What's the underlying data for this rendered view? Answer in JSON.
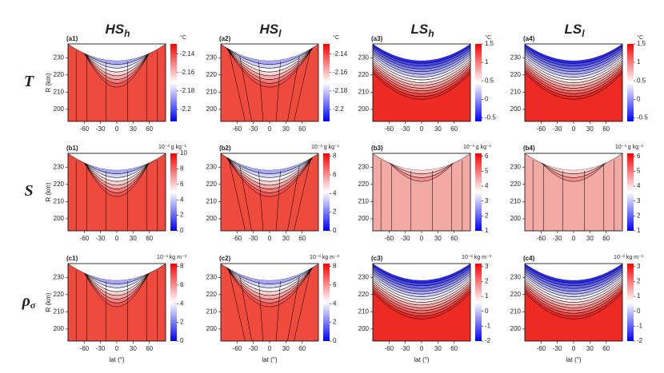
{
  "headers": [
    {
      "main": "HS",
      "sub": "h"
    },
    {
      "main": "HS",
      "sub": "l"
    },
    {
      "main": "LS",
      "sub": "h"
    },
    {
      "main": "LS",
      "sub": "l"
    }
  ],
  "rows": [
    {
      "main": "T"
    },
    {
      "main": "S"
    },
    {
      "main": "ρ",
      "sub": "σ"
    }
  ],
  "chart_data": [
    {
      "type": "contour",
      "label": "(a1)",
      "ylabel": "R (km)",
      "xlim": [
        -90,
        90
      ],
      "ylim": [
        193,
        238
      ],
      "xticks": [
        -60,
        -30,
        0,
        30,
        60
      ],
      "yticks": [
        200,
        210,
        220,
        230
      ],
      "colorbar": {
        "unit": "°C",
        "lim": [
          -2.213,
          -2.129
        ],
        "ticks": [
          -2.14,
          -2.16,
          -2.18,
          -2.2
        ]
      }
    },
    {
      "type": "contour",
      "label": "(a2)",
      "xlim": [
        -90,
        90
      ],
      "ylim": [
        193,
        238
      ],
      "xticks": [
        -60,
        -30,
        0,
        30,
        60
      ],
      "yticks": [
        200,
        210,
        220,
        230
      ],
      "colorbar": {
        "unit": "°C",
        "lim": [
          -2.213,
          -2.129
        ],
        "ticks": [
          -2.14,
          -2.16,
          -2.18,
          -2.2
        ]
      }
    },
    {
      "type": "contour",
      "label": "(a3)",
      "xlim": [
        -90,
        90
      ],
      "ylim": [
        193,
        238
      ],
      "xticks": [
        -60,
        -30,
        0,
        30,
        60
      ],
      "yticks": [
        200,
        210,
        220,
        230
      ],
      "colorbar": {
        "unit": "°C",
        "lim": [
          -0.6,
          1.5
        ],
        "ticks": [
          1.5,
          1,
          0.5,
          0,
          -0.5
        ]
      }
    },
    {
      "type": "contour",
      "label": "(a4)",
      "xlim": [
        -90,
        90
      ],
      "ylim": [
        193,
        238
      ],
      "xticks": [
        -60,
        -30,
        0,
        30,
        60
      ],
      "yticks": [
        200,
        210,
        220,
        230
      ],
      "colorbar": {
        "unit": "°C",
        "lim": [
          -0.6,
          1.5
        ],
        "ticks": [
          1.5,
          1,
          0.5,
          0,
          -0.5
        ]
      }
    },
    {
      "type": "contour",
      "label": "(b1)",
      "ylabel": "R (km)",
      "xlim": [
        -90,
        90
      ],
      "ylim": [
        193,
        238
      ],
      "xticks": [
        -60,
        -30,
        0,
        30,
        60
      ],
      "yticks": [
        200,
        210,
        220,
        230
      ],
      "colorbar": {
        "unit": "10⁻³ g kg⁻¹",
        "lim": [
          0,
          10
        ],
        "ticks": [
          10,
          8,
          6,
          4,
          2,
          0
        ]
      }
    },
    {
      "type": "contour",
      "label": "(b2)",
      "xlim": [
        -90,
        90
      ],
      "ylim": [
        193,
        238
      ],
      "xticks": [
        -60,
        -30,
        0,
        30,
        60
      ],
      "yticks": [
        200,
        210,
        220,
        230
      ],
      "colorbar": {
        "unit": "10⁻³ g kg⁻¹",
        "lim": [
          0,
          8.3
        ],
        "ticks": [
          8,
          6,
          4,
          2,
          0
        ]
      }
    },
    {
      "type": "contour",
      "label": "(b3)",
      "xlim": [
        -90,
        90
      ],
      "ylim": [
        193,
        238
      ],
      "xticks": [
        -60,
        -30,
        0,
        30,
        60
      ],
      "yticks": [
        200,
        210,
        220,
        230
      ],
      "colorbar": {
        "unit": "10⁻³ g kg⁻¹",
        "lim": [
          1,
          6.2
        ],
        "ticks": [
          6,
          5,
          4,
          3,
          2,
          1
        ]
      }
    },
    {
      "type": "contour",
      "label": "(b4)",
      "xlim": [
        -90,
        90
      ],
      "ylim": [
        193,
        238
      ],
      "xticks": [
        -60,
        -30,
        0,
        30,
        60
      ],
      "yticks": [
        200,
        210,
        220,
        230
      ],
      "colorbar": {
        "unit": "10⁻³ g kg⁻¹",
        "lim": [
          1,
          6.2
        ],
        "ticks": [
          6,
          5,
          4,
          3,
          2,
          1
        ]
      }
    },
    {
      "type": "contour",
      "label": "(c1)",
      "ylabel": "R (km)",
      "xlabel": "lat (°)",
      "xlim": [
        -90,
        90
      ],
      "ylim": [
        193,
        238
      ],
      "xticks": [
        -60,
        -30,
        0,
        30,
        60
      ],
      "yticks": [
        200,
        210,
        220,
        230
      ],
      "colorbar": {
        "unit": "10⁻³ kg m⁻³",
        "lim": [
          0,
          8.3
        ],
        "ticks": [
          8,
          6,
          4,
          2,
          0
        ]
      }
    },
    {
      "type": "contour",
      "label": "(c2)",
      "xlabel": "lat (°)",
      "xlim": [
        -90,
        90
      ],
      "ylim": [
        193,
        238
      ],
      "xticks": [
        -60,
        -30,
        0,
        30,
        60
      ],
      "yticks": [
        200,
        210,
        220,
        230
      ],
      "colorbar": {
        "unit": "10⁻³ kg m⁻³",
        "lim": [
          0,
          8.3
        ],
        "ticks": [
          8,
          6,
          4,
          2,
          0
        ]
      }
    },
    {
      "type": "contour",
      "label": "(c3)",
      "xlabel": "lat (°)",
      "xlim": [
        -90,
        90
      ],
      "ylim": [
        193,
        238
      ],
      "xticks": [
        -60,
        -30,
        0,
        30,
        60
      ],
      "yticks": [
        200,
        210,
        220,
        230
      ],
      "colorbar": {
        "unit": "10⁻² kg m⁻³",
        "lim": [
          -2,
          3.2
        ],
        "ticks": [
          3,
          2,
          1,
          0,
          -1,
          -2
        ]
      }
    },
    {
      "type": "contour",
      "label": "(c4)",
      "xlabel": "lat (°)",
      "xlim": [
        -90,
        90
      ],
      "ylim": [
        193,
        238
      ],
      "xticks": [
        -60,
        -30,
        0,
        30,
        60
      ],
      "yticks": [
        200,
        210,
        220,
        230
      ],
      "colorbar": {
        "unit": "10⁻² kg m⁻³",
        "lim": [
          -2,
          3.2
        ],
        "ticks": [
          3,
          2,
          1,
          0,
          -1,
          -2
        ]
      }
    }
  ]
}
